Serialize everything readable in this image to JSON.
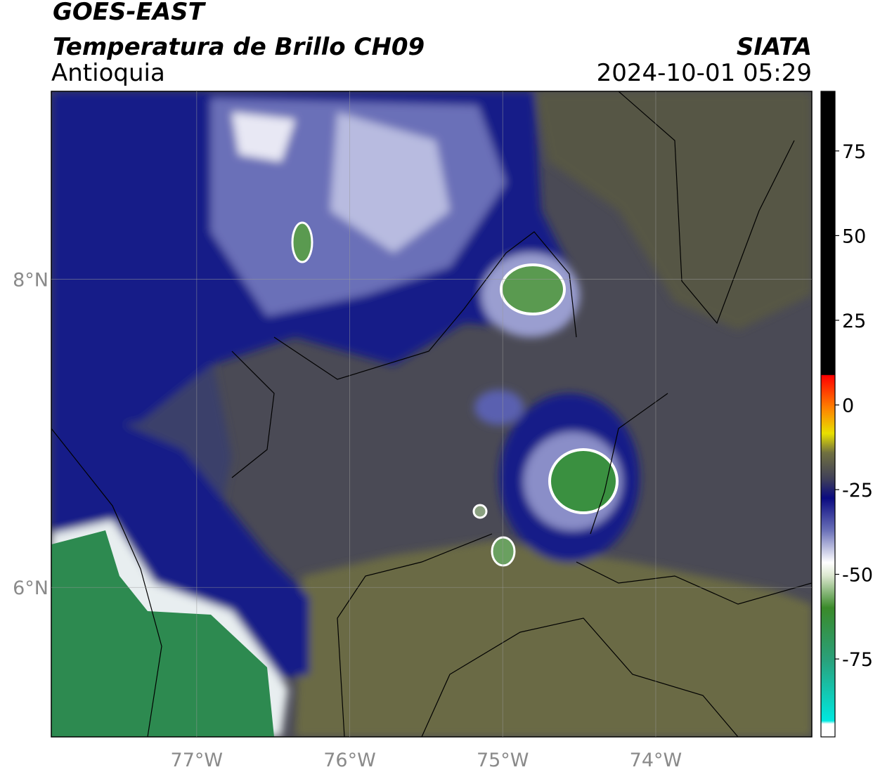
{
  "header": {
    "satellite": "GOES-EAST",
    "product": "Temperatura de Brillo CH09",
    "region": "Antioquia",
    "source": "SIATA",
    "datetime": "2024-10-01 05:29"
  },
  "map": {
    "xlim": [
      -77.95,
      -72.98
    ],
    "ylim": [
      5.03,
      9.22
    ],
    "xticks": [
      {
        "value": -77,
        "label": "77°W"
      },
      {
        "value": -76,
        "label": "76°W"
      },
      {
        "value": -75,
        "label": "75°W"
      },
      {
        "value": -74,
        "label": "74°W"
      }
    ],
    "yticks": [
      {
        "value": 8,
        "label": "8°N"
      },
      {
        "value": 6,
        "label": "6°N"
      }
    ],
    "grid": true
  },
  "colorbar": {
    "lim": [
      -98,
      92.6
    ],
    "ticks": [
      75,
      50,
      25,
      0,
      -25,
      -50,
      -75
    ]
  }
}
